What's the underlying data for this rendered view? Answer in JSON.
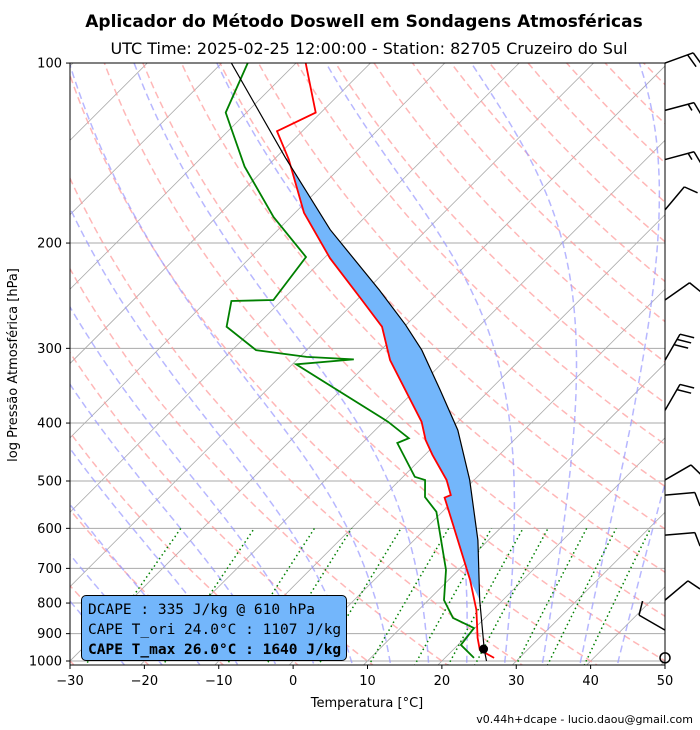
{
  "title": "Aplicador do Método Doswell em Sondagens Atmosféricas",
  "subtitle": "UTC Time: 2025-02-25 12:00:00 - Station: 82705 Cruzeiro do Sul",
  "footer": "v0.44h+dcape  -  lucio.daou@gmail.com",
  "info": {
    "line1": "DCAPE : 335 J/kg @ 610 hPa",
    "line2": "CAPE T_ori 24.0°C : 1107 J/kg",
    "line3": "CAPE T_max 26.0°C : 1640 J/kg"
  },
  "chart_data": {
    "type": "line",
    "title": "Aplicador do Método Doswell em Sondagens Atmosféricas",
    "xlabel": "Temperatura [°C]",
    "ylabel": "log Pressão Atmosférica [hPa]",
    "xlim": [
      -30,
      50
    ],
    "ylim": [
      1016,
      100
    ],
    "xticks": [
      "−30",
      "−20",
      "−10",
      "0",
      "10",
      "20",
      "30",
      "40",
      "50"
    ],
    "xtick_values": [
      -30,
      -20,
      -10,
      0,
      10,
      20,
      30,
      40,
      50
    ],
    "yticks": [
      "100",
      "200",
      "300",
      "400",
      "500",
      "600",
      "700",
      "800",
      "900",
      "1000"
    ],
    "ytick_values": [
      100,
      200,
      300,
      400,
      500,
      600,
      700,
      800,
      900,
      1000
    ],
    "colors": {
      "temperature": "#ff0000",
      "dewpoint": "#008000",
      "parcel": "#000000",
      "cape": "#73b6fb",
      "dry_adiabat": "#ff9999",
      "moist_adiabat": "#9999ff",
      "mixing_ratio": "#008000",
      "isotherm": "#999999"
    },
    "series": [
      {
        "name": "temperature",
        "pressure": [
          988,
          958,
          915,
          822,
          732,
          592,
          533,
          528,
          498,
          452,
          427,
          398,
          314,
          276,
          249,
          212,
          178,
          145,
          130,
          121,
          100
        ],
        "values": [
          26.6,
          23.6,
          21.7,
          17.8,
          12.9,
          3.2,
          -1.6,
          -1.1,
          -3.7,
          -9.0,
          -11.9,
          -14.9,
          -27.4,
          -33.0,
          -39.3,
          -49.2,
          -58.8,
          -68.0,
          -73.4,
          -70.7,
          -78.7
        ]
      },
      {
        "name": "dewpoint",
        "pressure": [
          988,
          940,
          881,
          847,
          791,
          704,
          563,
          532,
          498,
          492,
          432,
          424,
          398,
          319,
          313,
          310,
          302,
          276,
          250,
          249,
          211,
          181,
          149,
          121,
          100
        ],
        "values": [
          23.9,
          20.4,
          19.9,
          15.7,
          12.1,
          8.3,
          -0.8,
          -4.3,
          -6.6,
          -8.4,
          -15.3,
          -14.4,
          -19.4,
          -39.5,
          -32.4,
          -39.1,
          -46.8,
          -53.9,
          -56.7,
          -51.2,
          -52.6,
          -62.3,
          -73.0,
          -82.8,
          -86.5
        ]
      },
      {
        "name": "parcel",
        "pressure": [
          1000,
          958,
          791,
          628,
          498,
          411,
          352,
          302,
          274,
          240,
          190,
          144,
          100
        ],
        "values": [
          26.0,
          24.2,
          16.9,
          8.6,
          -0.6,
          -8.9,
          -16.7,
          -24.5,
          -30.1,
          -38.2,
          -53.0,
          -68.7,
          -88.7
        ]
      }
    ],
    "surface_point": {
      "pressure": 955,
      "temperature": 24.0
    },
    "wind_barbs": [
      {
        "pressure": 100,
        "direction": 70,
        "speed": 20
      },
      {
        "pressure": 120,
        "direction": 75,
        "speed": 15
      },
      {
        "pressure": 145,
        "direction": 75,
        "speed": 15
      },
      {
        "pressure": 176,
        "direction": 40,
        "speed": 10
      },
      {
        "pressure": 249,
        "direction": 55,
        "speed": 10
      },
      {
        "pressure": 314,
        "direction": 30,
        "speed": 30
      },
      {
        "pressure": 381,
        "direction": 30,
        "speed": 20
      },
      {
        "pressure": 498,
        "direction": 60,
        "speed": 10
      },
      {
        "pressure": 528,
        "direction": 85,
        "speed": 10
      },
      {
        "pressure": 616,
        "direction": 85,
        "speed": 10
      },
      {
        "pressure": 791,
        "direction": 50,
        "speed": 10
      },
      {
        "pressure": 888,
        "direction": 300,
        "speed": 10
      },
      {
        "pressure": 988,
        "direction": 0,
        "speed": 0
      }
    ]
  }
}
